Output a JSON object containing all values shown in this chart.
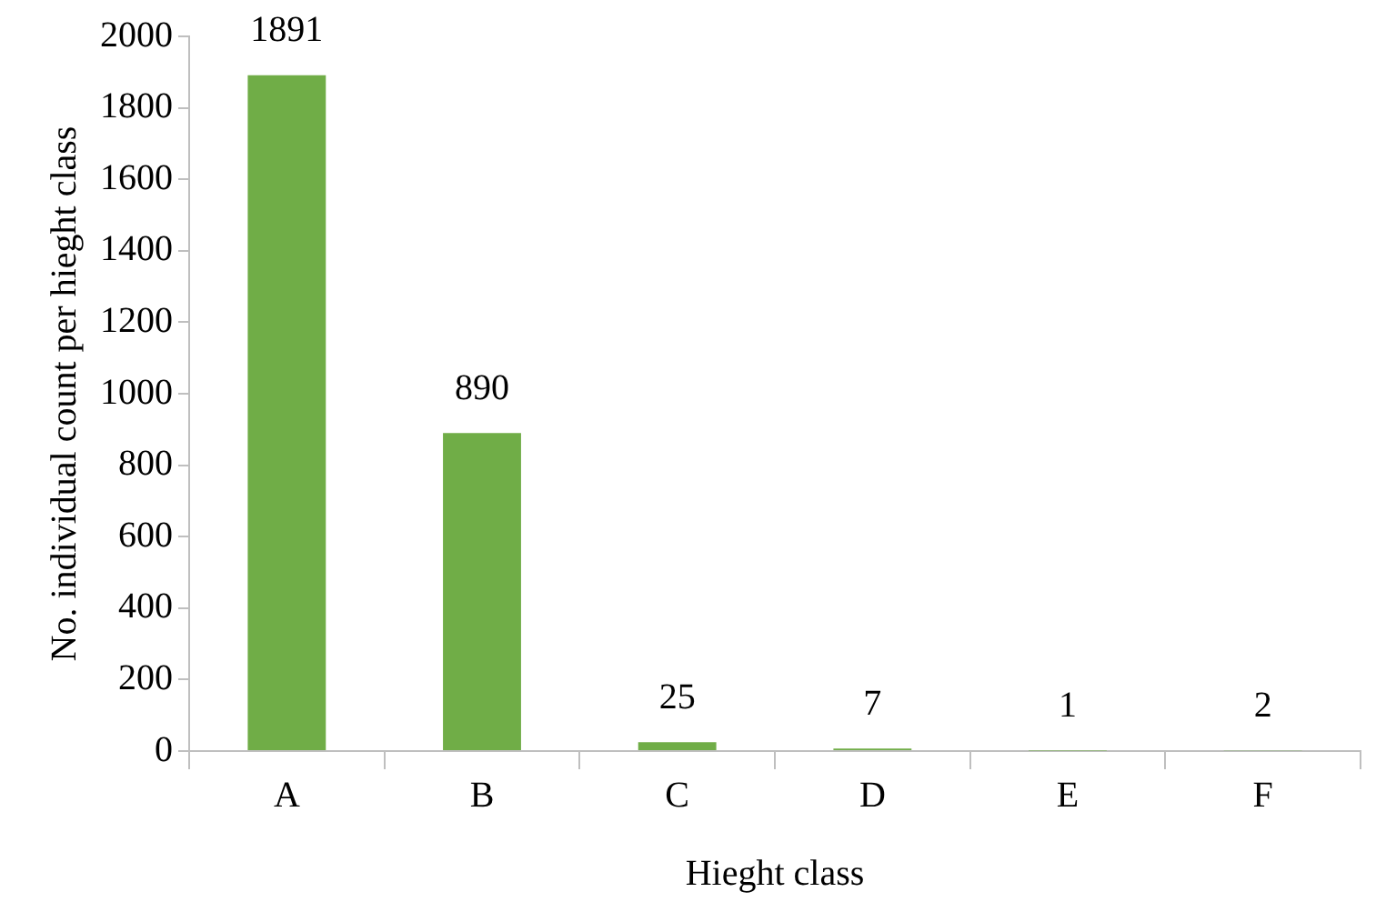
{
  "chart_data": {
    "type": "bar",
    "xlabel": "Hieght class",
    "ylabel": "No. individual count per hieght class",
    "categories": [
      "A",
      "B",
      "C",
      "D",
      "E",
      "F"
    ],
    "values": [
      1891,
      890,
      25,
      7,
      1,
      2
    ],
    "color": "#70ad47",
    "ylim": [
      0,
      2000
    ],
    "yticks": [
      0,
      200,
      400,
      600,
      800,
      1000,
      1200,
      1400,
      1600,
      1800,
      2000
    ],
    "grid": false,
    "legend": false,
    "data_labels": true
  }
}
